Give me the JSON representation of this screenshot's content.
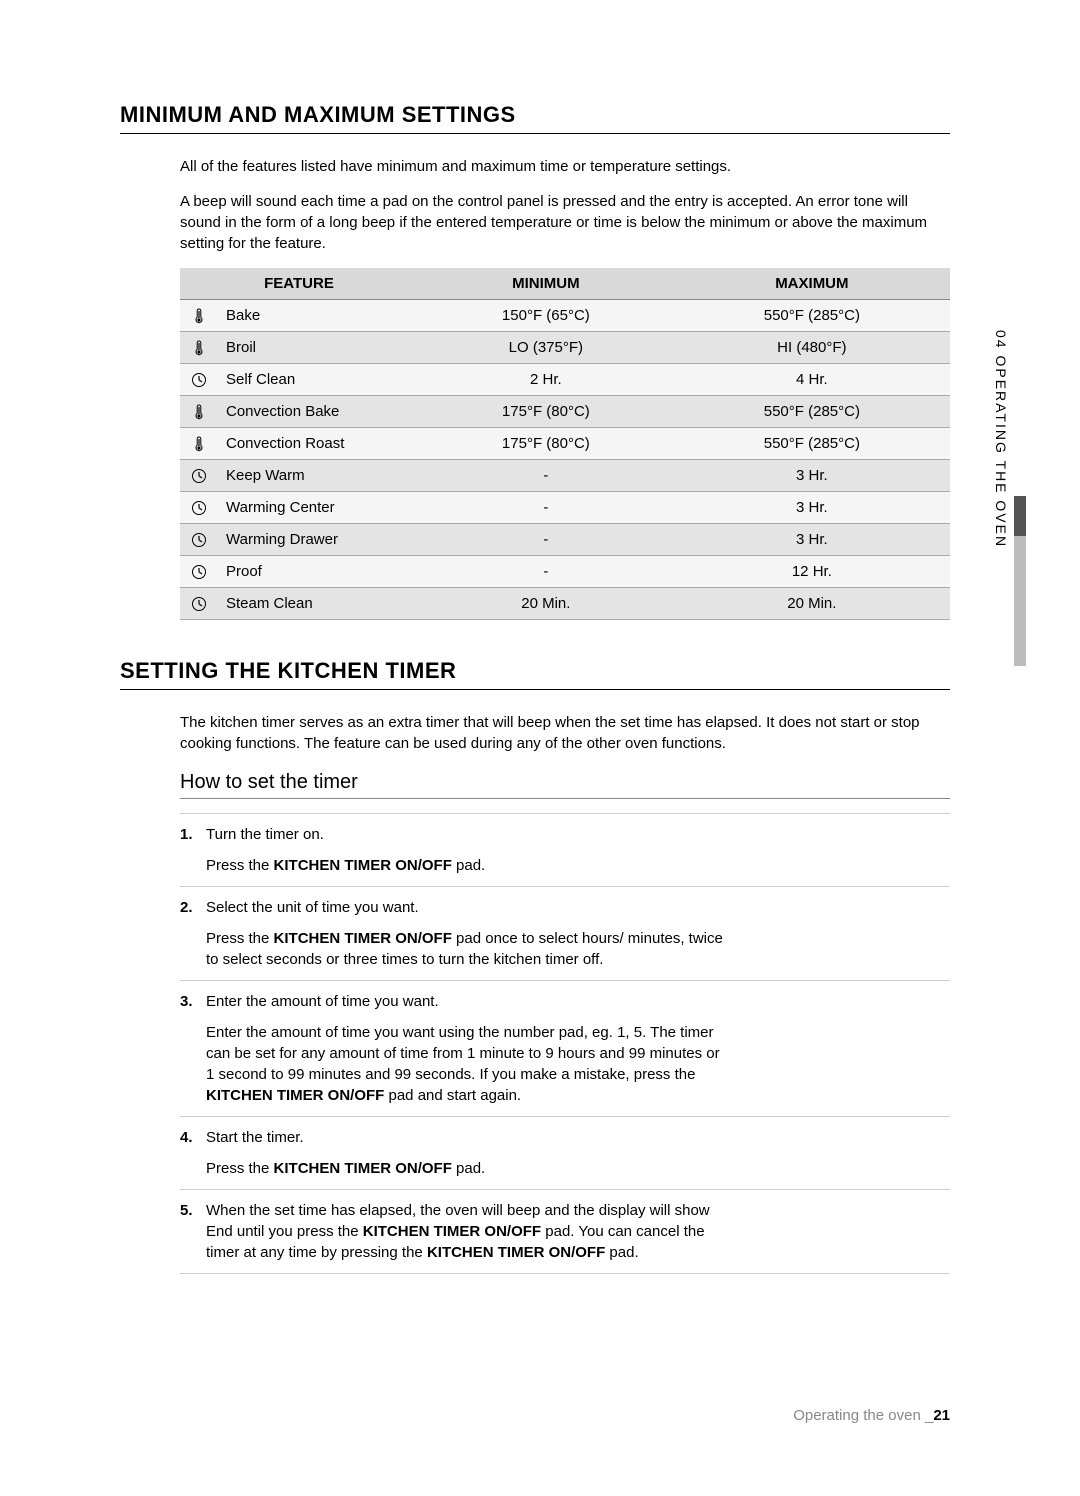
{
  "section1": {
    "heading": "MINIMUM AND MAXIMUM SETTINGS",
    "para1": "All of the features listed have minimum and maximum time or temperature settings.",
    "para2": "A beep will sound each time a pad on the control panel is pressed and the entry is accepted. An error tone will sound in the form of a long beep if the entered temperature or time is below the minimum or above the maximum setting for the feature."
  },
  "table": {
    "columns": [
      "FEATURE",
      "MINIMUM",
      "MAXIMUM"
    ],
    "rows": [
      {
        "icon": "temp",
        "feature": "Bake",
        "min": "150°F (65°C)",
        "max": "550°F (285°C)"
      },
      {
        "icon": "temp",
        "feature": "Broil",
        "min": "LO (375°F)",
        "max": "HI (480°F)"
      },
      {
        "icon": "clock",
        "feature": "Self Clean",
        "min": "2 Hr.",
        "max": "4 Hr."
      },
      {
        "icon": "temp",
        "feature": "Convection Bake",
        "min": "175°F (80°C)",
        "max": "550°F (285°C)"
      },
      {
        "icon": "temp",
        "feature": "Convection Roast",
        "min": "175°F (80°C)",
        "max": "550°F (285°C)"
      },
      {
        "icon": "clock",
        "feature": "Keep Warm",
        "min": "-",
        "max": "3 Hr."
      },
      {
        "icon": "clock",
        "feature": "Warming Center",
        "min": "-",
        "max": "3 Hr."
      },
      {
        "icon": "clock",
        "feature": "Warming Drawer",
        "min": "-",
        "max": "3 Hr."
      },
      {
        "icon": "clock",
        "feature": "Proof",
        "min": "-",
        "max": "12 Hr."
      },
      {
        "icon": "clock",
        "feature": "Steam Clean",
        "min": "20 Min.",
        "max": "20 Min."
      }
    ]
  },
  "section2": {
    "heading": "SETTING THE KITCHEN TIMER",
    "para": "The kitchen timer serves as an extra timer that will beep when the set time has elapsed. It does not start or stop cooking functions. The feature can be used during any of the other oven functions.",
    "subheading": "How to set the timer"
  },
  "steps": [
    {
      "num": "1.",
      "lead": "Turn the timer on.",
      "detail_pre": "Press the ",
      "detail_bold": "KITCHEN TIMER ON/OFF",
      "detail_post": " pad."
    },
    {
      "num": "2.",
      "lead": "Select the unit of time you want.",
      "detail_pre": "Press the ",
      "detail_bold": "KITCHEN TIMER ON/OFF",
      "detail_post": " pad once to select hours/ minutes, twice to select seconds or three times to turn the kitchen timer off."
    },
    {
      "num": "3.",
      "lead": "Enter the amount of time you want.",
      "detail_pre": "Enter the amount of time you want using the number pad, eg. 1, 5. The timer can be set for any amount of time from 1 minute to 9 hours and 99 minutes or 1 second to 99 minutes and 99 seconds. If you make a mistake, press the ",
      "detail_bold": "KITCHEN TIMER ON/OFF",
      "detail_post": " pad and start again."
    },
    {
      "num": "4.",
      "lead": "Start the timer.",
      "detail_pre": "Press the ",
      "detail_bold": "KITCHEN TIMER ON/OFF",
      "detail_post": " pad."
    },
    {
      "num": "5.",
      "lead_pre": "When the set time has elapsed, the oven will beep and the display will show End until you press the ",
      "lead_bold1": "KITCHEN TIMER ON/OFF",
      "lead_mid": " pad. You can cancel the timer at any time by pressing the ",
      "lead_bold2": "KITCHEN TIMER ON/OFF",
      "lead_post": " pad."
    }
  ],
  "side_tab": "04  OPERATING THE OVEN",
  "footer": {
    "text": "Operating the oven _",
    "page": "21"
  },
  "colors": {
    "header_bg": "#d9d9d9",
    "row_odd": "#f5f5f5",
    "row_even": "#e4e4e4",
    "rule": "#aaaaaa"
  }
}
